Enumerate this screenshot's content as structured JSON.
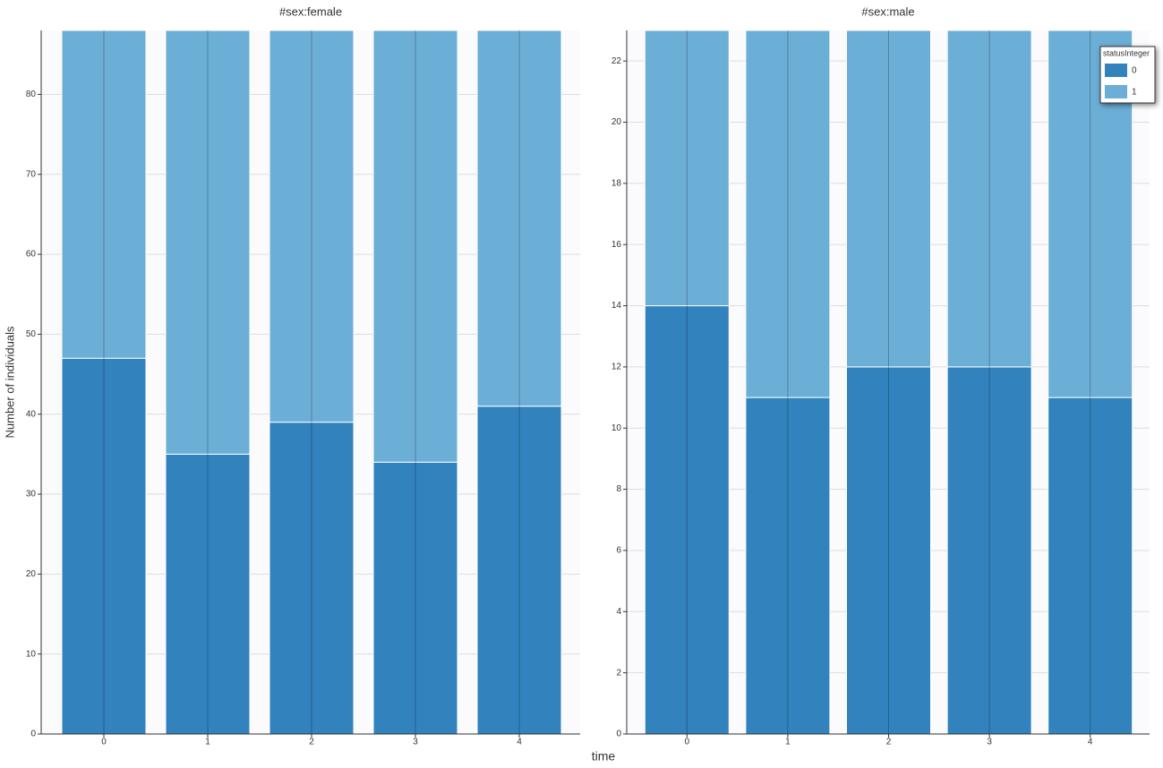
{
  "chart_data": [
    {
      "type": "stacked_bar",
      "title": "#sex:female",
      "y_label": "Number of individuals",
      "x_label": "time",
      "categories": [
        "0",
        "1",
        "2",
        "3",
        "4"
      ],
      "series": [
        {
          "name": "0",
          "color": "#3182bd",
          "values": [
            47,
            35,
            39,
            34,
            41
          ]
        },
        {
          "name": "1",
          "color": "#6baed6",
          "values": [
            41,
            53,
            49,
            54,
            47
          ]
        }
      ],
      "ylim": [
        0,
        88
      ],
      "yticks": [
        0,
        10,
        20,
        30,
        40,
        50,
        60,
        70,
        80
      ],
      "grid": true
    },
    {
      "type": "stacked_bar",
      "title": "#sex:male",
      "legend_title": "statusInteger",
      "legend": "top-right",
      "categories": [
        "0",
        "1",
        "2",
        "3",
        "4"
      ],
      "series": [
        {
          "name": "0",
          "color": "#3182bd",
          "values": [
            14,
            11,
            12,
            12,
            11
          ]
        },
        {
          "name": "1",
          "color": "#6baed6",
          "values": [
            9,
            12,
            11,
            11,
            12
          ]
        }
      ],
      "ylim": [
        0,
        23
      ],
      "yticks": [
        0,
        2,
        4,
        6,
        8,
        10,
        12,
        14,
        16,
        18,
        20,
        22
      ],
      "grid": true
    }
  ]
}
